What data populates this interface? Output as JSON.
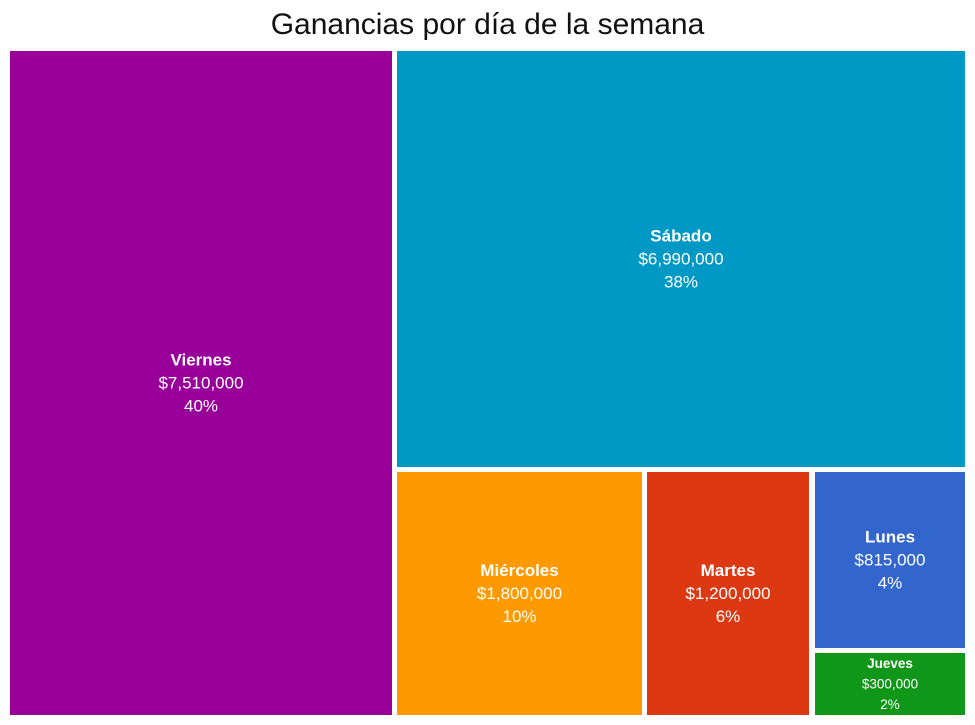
{
  "chart_data": {
    "type": "treemap",
    "title": "Ganancias por día de la semana",
    "items": [
      {
        "name": "Viernes",
        "value_label": "$7,510,000",
        "value": 7510000,
        "percent_label": "40%",
        "color": "#990099"
      },
      {
        "name": "Sábado",
        "value_label": "$6,990,000",
        "value": 6990000,
        "percent_label": "38%",
        "color": "#0099C6"
      },
      {
        "name": "Miércoles",
        "value_label": "$1,800,000",
        "value": 1800000,
        "percent_label": "10%",
        "color": "#FF9900"
      },
      {
        "name": "Martes",
        "value_label": "$1,200,000",
        "value": 1200000,
        "percent_label": "6%",
        "color": "#DC3912"
      },
      {
        "name": "Lunes",
        "value_label": "$815,000",
        "value": 815000,
        "percent_label": "4%",
        "color": "#3366CC"
      },
      {
        "name": "Jueves",
        "value_label": "$300,000",
        "value": 300000,
        "percent_label": "2%",
        "color": "#109618"
      }
    ]
  }
}
